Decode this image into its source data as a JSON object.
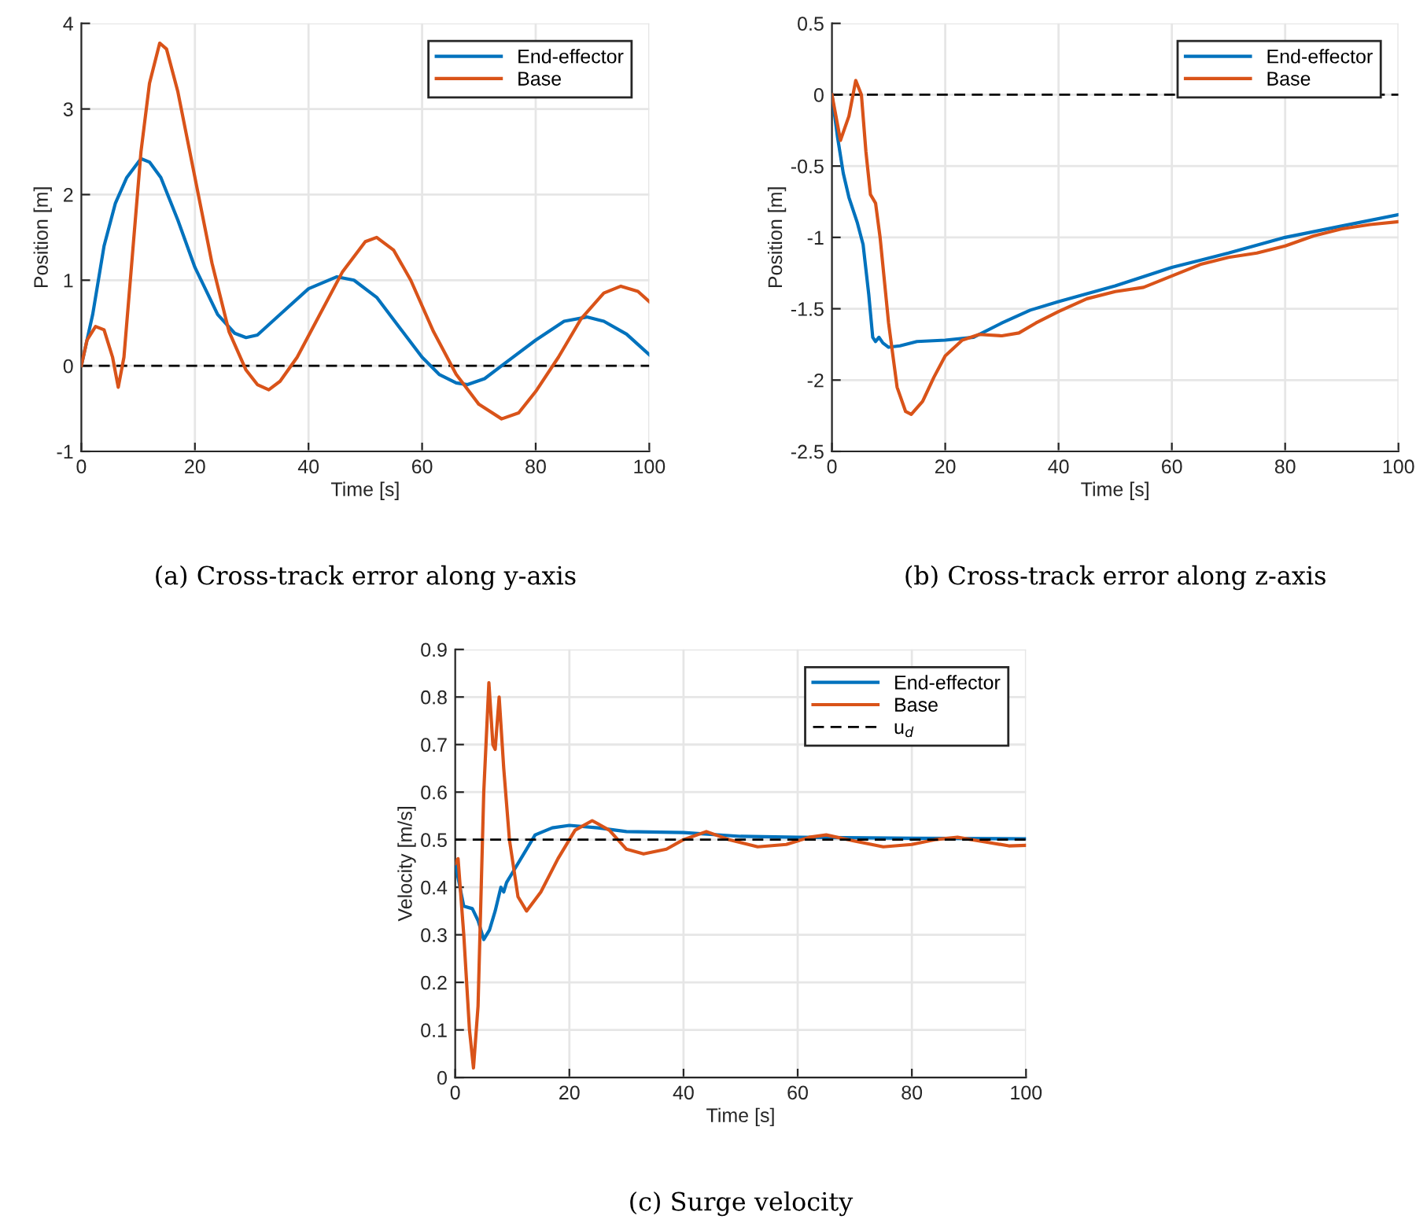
{
  "chart_data": [
    {
      "type": "line",
      "title": "(a) Cross-track error along y-axis",
      "xlabel": "Time [s]",
      "ylabel": "Position [m]",
      "xlim": [
        0,
        100
      ],
      "xticks": [
        0,
        20,
        40,
        60,
        80,
        100
      ],
      "ylim": [
        -1,
        4
      ],
      "yticks": [
        -1,
        0,
        1,
        2,
        3,
        4
      ],
      "grid": true,
      "legend": "top right",
      "ref_lines": [
        {
          "axis": "y",
          "value": 0,
          "color": "#000000",
          "line_style": "dashed"
        }
      ],
      "series": [
        {
          "name": "End-effector",
          "color": "#0072bd",
          "x": [
            0,
            2,
            4,
            6,
            8,
            10.5,
            12,
            14,
            17,
            20,
            24,
            27,
            29,
            31,
            35,
            40,
            45,
            48,
            52,
            56,
            60,
            63,
            66,
            68,
            71,
            75,
            80,
            85,
            89,
            92,
            96,
            100
          ],
          "values": [
            0,
            0.6,
            1.4,
            1.9,
            2.2,
            2.42,
            2.38,
            2.2,
            1.7,
            1.15,
            0.6,
            0.38,
            0.33,
            0.36,
            0.6,
            0.9,
            1.04,
            1.0,
            0.8,
            0.45,
            0.1,
            -0.1,
            -0.2,
            -0.22,
            -0.15,
            0.05,
            0.3,
            0.52,
            0.57,
            0.52,
            0.37,
            0.13
          ]
        },
        {
          "name": "Base",
          "color": "#d95319",
          "x": [
            0,
            1,
            2.5,
            4,
            5.5,
            6.5,
            7.5,
            9,
            10.5,
            12,
            13.8,
            15,
            17,
            20,
            23,
            26,
            29,
            31,
            33,
            35,
            38,
            42,
            46,
            50,
            52,
            55,
            58,
            62,
            66,
            70,
            74,
            77,
            80,
            84,
            88,
            92,
            95,
            98,
            100
          ],
          "values": [
            0,
            0.3,
            0.46,
            0.42,
            0.1,
            -0.25,
            0.1,
            1.3,
            2.5,
            3.3,
            3.77,
            3.7,
            3.2,
            2.2,
            1.2,
            0.4,
            -0.05,
            -0.22,
            -0.28,
            -0.18,
            0.1,
            0.6,
            1.1,
            1.45,
            1.5,
            1.35,
            1.0,
            0.4,
            -0.1,
            -0.45,
            -0.62,
            -0.55,
            -0.3,
            0.1,
            0.55,
            0.85,
            0.93,
            0.87,
            0.75
          ]
        }
      ]
    },
    {
      "type": "line",
      "title": "(b) Cross-track error along z-axis",
      "xlabel": "Time [s]",
      "ylabel": "Position [m]",
      "xlim": [
        0,
        100
      ],
      "xticks": [
        0,
        20,
        40,
        60,
        80,
        100
      ],
      "ylim": [
        -2.5,
        0.5
      ],
      "yticks": [
        -2.5,
        -2,
        -1.5,
        -1,
        -0.5,
        0,
        0.5
      ],
      "grid": true,
      "legend": "top right",
      "ref_lines": [
        {
          "axis": "y",
          "value": 0,
          "color": "#000000",
          "line_style": "dashed"
        }
      ],
      "series": [
        {
          "name": "End-effector",
          "color": "#0072bd",
          "x": [
            0,
            1,
            2,
            3,
            4.5,
            5.5,
            6.5,
            7.2,
            7.7,
            8.3,
            9,
            10,
            12,
            15,
            20,
            25,
            30,
            35,
            40,
            50,
            60,
            70,
            80,
            90,
            100
          ],
          "values": [
            0,
            -0.3,
            -0.55,
            -0.72,
            -0.9,
            -1.05,
            -1.4,
            -1.7,
            -1.73,
            -1.7,
            -1.74,
            -1.77,
            -1.76,
            -1.73,
            -1.72,
            -1.7,
            -1.6,
            -1.51,
            -1.45,
            -1.34,
            -1.21,
            -1.11,
            -1.0,
            -0.92,
            -0.84
          ]
        },
        {
          "name": "Base",
          "color": "#d95319",
          "x": [
            0,
            1.5,
            3,
            4.2,
            5.2,
            6,
            6.8,
            7.7,
            8.5,
            10,
            11.5,
            13,
            14,
            16,
            18,
            20,
            23,
            26,
            30,
            33,
            36,
            40,
            45,
            50,
            55,
            60,
            65,
            70,
            75,
            80,
            85,
            90,
            95,
            100
          ],
          "values": [
            0,
            -0.32,
            -0.15,
            0.1,
            0.0,
            -0.4,
            -0.7,
            -0.76,
            -1.0,
            -1.6,
            -2.05,
            -2.22,
            -2.24,
            -2.15,
            -1.98,
            -1.83,
            -1.72,
            -1.68,
            -1.69,
            -1.67,
            -1.6,
            -1.52,
            -1.43,
            -1.38,
            -1.35,
            -1.27,
            -1.19,
            -1.14,
            -1.11,
            -1.06,
            -0.99,
            -0.94,
            -0.91,
            -0.89
          ]
        }
      ]
    },
    {
      "type": "line",
      "title": "(c) Surge velocity",
      "xlabel": "Time [s]",
      "ylabel": "Velocity [m/s]",
      "xlim": [
        0,
        100
      ],
      "xticks": [
        0,
        20,
        40,
        60,
        80,
        100
      ],
      "ylim": [
        0,
        0.9
      ],
      "yticks": [
        0,
        0.1,
        0.2,
        0.3,
        0.4,
        0.5,
        0.6,
        0.7,
        0.8,
        0.9
      ],
      "grid": true,
      "legend": "top right",
      "series": [
        {
          "name": "End-effector",
          "color": "#0072bd",
          "x": [
            0,
            0.5,
            1.5,
            3,
            4,
            5,
            6,
            7,
            8,
            8.5,
            9,
            10,
            12,
            14,
            17,
            20,
            25,
            30,
            40,
            50,
            60,
            80,
            100
          ],
          "values": [
            0.45,
            0.42,
            0.36,
            0.355,
            0.33,
            0.29,
            0.31,
            0.35,
            0.4,
            0.39,
            0.41,
            0.43,
            0.47,
            0.51,
            0.525,
            0.53,
            0.525,
            0.517,
            0.515,
            0.507,
            0.505,
            0.503,
            0.502
          ]
        },
        {
          "name": "Base",
          "color": "#d95319",
          "x": [
            0,
            0.5,
            1.5,
            2.5,
            3.2,
            4,
            5,
            5.9,
            6.6,
            7.0,
            7.7,
            8.5,
            9.5,
            11,
            12.5,
            15,
            18,
            21,
            24,
            27,
            30,
            33,
            37,
            40,
            44,
            48,
            53,
            58,
            62,
            65,
            70,
            75,
            80,
            84,
            88,
            93,
            97,
            100
          ],
          "values": [
            0.45,
            0.46,
            0.3,
            0.1,
            0.02,
            0.15,
            0.6,
            0.83,
            0.7,
            0.69,
            0.8,
            0.65,
            0.5,
            0.38,
            0.35,
            0.39,
            0.46,
            0.52,
            0.54,
            0.52,
            0.48,
            0.47,
            0.48,
            0.5,
            0.517,
            0.5,
            0.485,
            0.49,
            0.505,
            0.51,
            0.497,
            0.485,
            0.49,
            0.5,
            0.505,
            0.495,
            0.487,
            0.488
          ]
        },
        {
          "name": "u$_{d}$",
          "color": "#000000",
          "line_style": "dashed",
          "x": [
            0,
            100
          ],
          "values": [
            0.5,
            0.5
          ]
        }
      ]
    }
  ]
}
